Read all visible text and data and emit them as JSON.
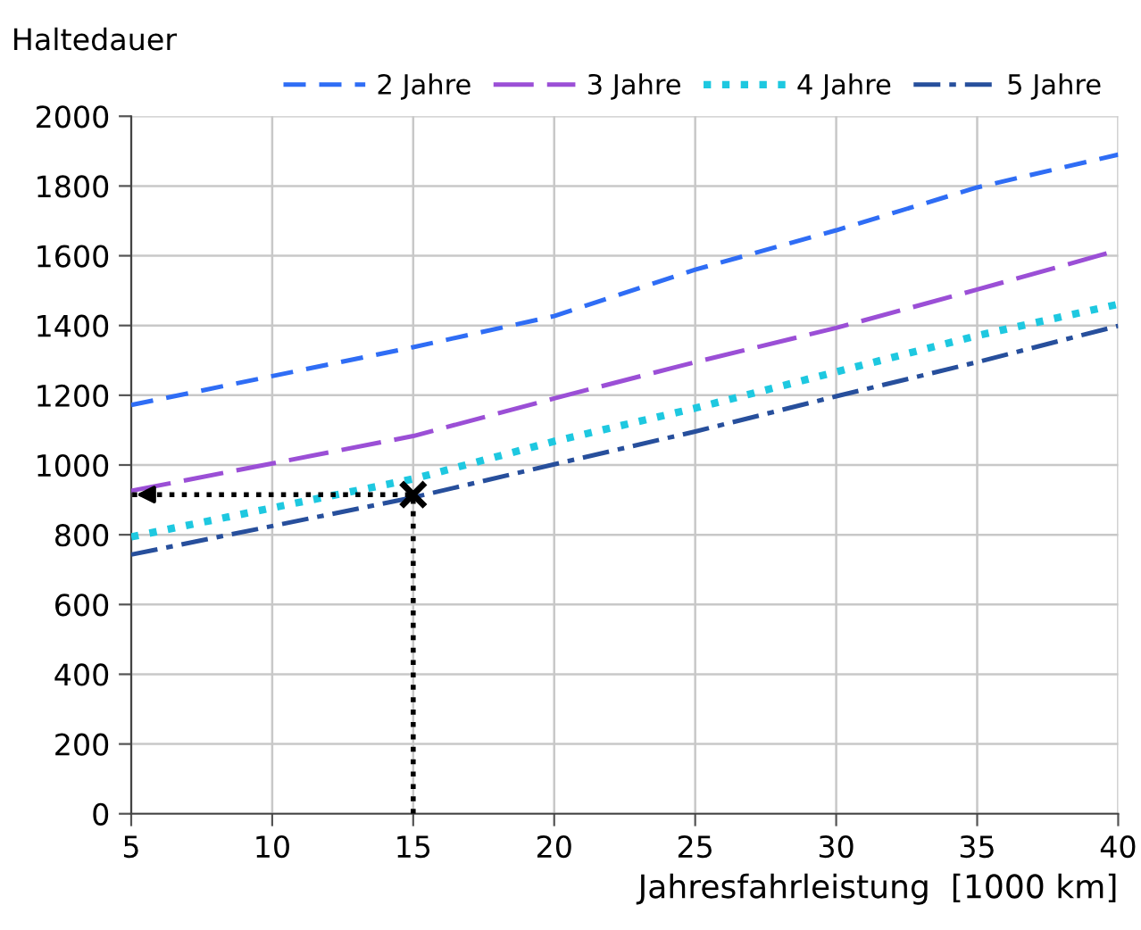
{
  "chart_data": {
    "type": "line",
    "legend_title": "Haltedauer",
    "xlabel": "Jahresfahrleistung  [1000 km]",
    "xlim": [
      5,
      40
    ],
    "xticks": [
      5,
      10,
      15,
      20,
      25,
      30,
      35,
      40
    ],
    "ylim": [
      0,
      2000
    ],
    "yticks": [
      0,
      200,
      400,
      600,
      800,
      1000,
      1200,
      1400,
      1600,
      1800,
      2000
    ],
    "grid": true,
    "legend": "top",
    "marker": "none",
    "series": [
      {
        "name": "2 Jahre",
        "color": "#2f6df5",
        "line_style": "dashed",
        "x": [
          5,
          15,
          20,
          25,
          30,
          35,
          40
        ],
        "values": [
          1172,
          1338,
          1427,
          1560,
          1673,
          1796,
          1890
        ]
      },
      {
        "name": "3 Jahre",
        "color": "#9b4fd6",
        "line_style": "longdash",
        "x": [
          5,
          15,
          20,
          25,
          30,
          35,
          40
        ],
        "values": [
          926,
          1083,
          1191,
          1295,
          1393,
          1503,
          1616
        ]
      },
      {
        "name": "4 Jahre",
        "color": "#1ec8e0",
        "line_style": "dotted",
        "x": [
          5,
          15,
          20,
          25,
          30,
          35,
          40
        ],
        "values": [
          794,
          960,
          1068,
          1163,
          1267,
          1371,
          1461
        ]
      },
      {
        "name": "5 Jahre",
        "color": "#274f9c",
        "line_style": "dashdot",
        "x": [
          5,
          15,
          20,
          25,
          30,
          35,
          40
        ],
        "values": [
          743,
          907,
          1002,
          1096,
          1197,
          1295,
          1399
        ]
      },
      {
        "color": "#000000",
        "line_style": "dotted",
        "x": [
          15,
          15,
          5
        ],
        "values": [
          0,
          915,
          915
        ]
      },
      {
        "type": "scatter",
        "color": "#000000",
        "marker": "cross",
        "x": [
          15
        ],
        "values": [
          915
        ]
      }
    ]
  }
}
